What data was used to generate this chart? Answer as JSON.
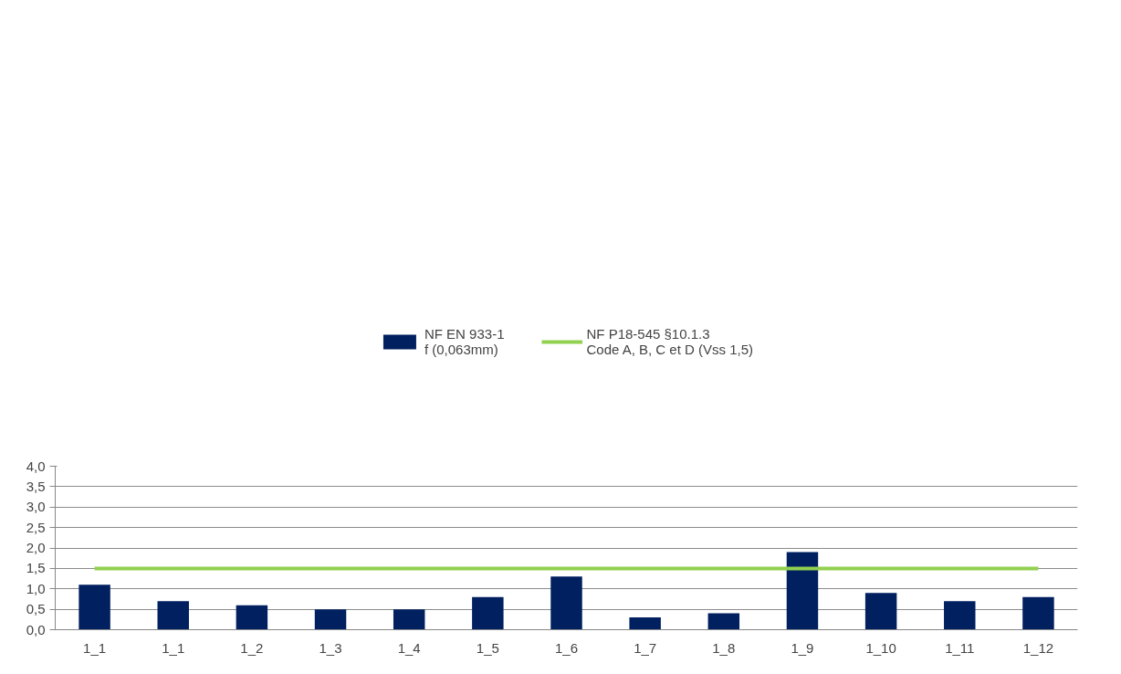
{
  "chart_data": {
    "type": "bar",
    "categories": [
      "1_1",
      "1_1",
      "1_2",
      "1_3",
      "1_4",
      "1_5",
      "1_6",
      "1_7",
      "1_8",
      "1_9",
      "1_10",
      "1_11",
      "1_12"
    ],
    "series": [
      {
        "name": "NF EN 933-1\nf (0,063mm)",
        "color": "#002060",
        "values": [
          1.1,
          0.7,
          0.6,
          0.5,
          0.5,
          0.8,
          1.3,
          0.3,
          0.4,
          1.9,
          0.9,
          0.7,
          0.8
        ]
      },
      {
        "name": "NF P18-545 §10.1.3\nCode A, B, C et D (Vss 1,5)",
        "type": "line",
        "color": "#92d050",
        "values": [
          1.5,
          1.5,
          1.5,
          1.5,
          1.5,
          1.5,
          1.5,
          1.5,
          1.5,
          1.5,
          1.5,
          1.5,
          1.5
        ]
      }
    ],
    "ylim": [
      0,
      4
    ],
    "yticks": [
      {
        "value": 0,
        "label": "0,0"
      },
      {
        "value": 0.5,
        "label": "0,5"
      },
      {
        "value": 1,
        "label": "1,0"
      },
      {
        "value": 1.5,
        "label": "1,5"
      },
      {
        "value": 2,
        "label": "2,0"
      },
      {
        "value": 2.5,
        "label": "2,5"
      },
      {
        "value": 3,
        "label": "3,0"
      },
      {
        "value": 3.5,
        "label": "3,5"
      },
      {
        "value": 4,
        "label": "4,0"
      }
    ],
    "grid": "y",
    "legend": "top"
  }
}
